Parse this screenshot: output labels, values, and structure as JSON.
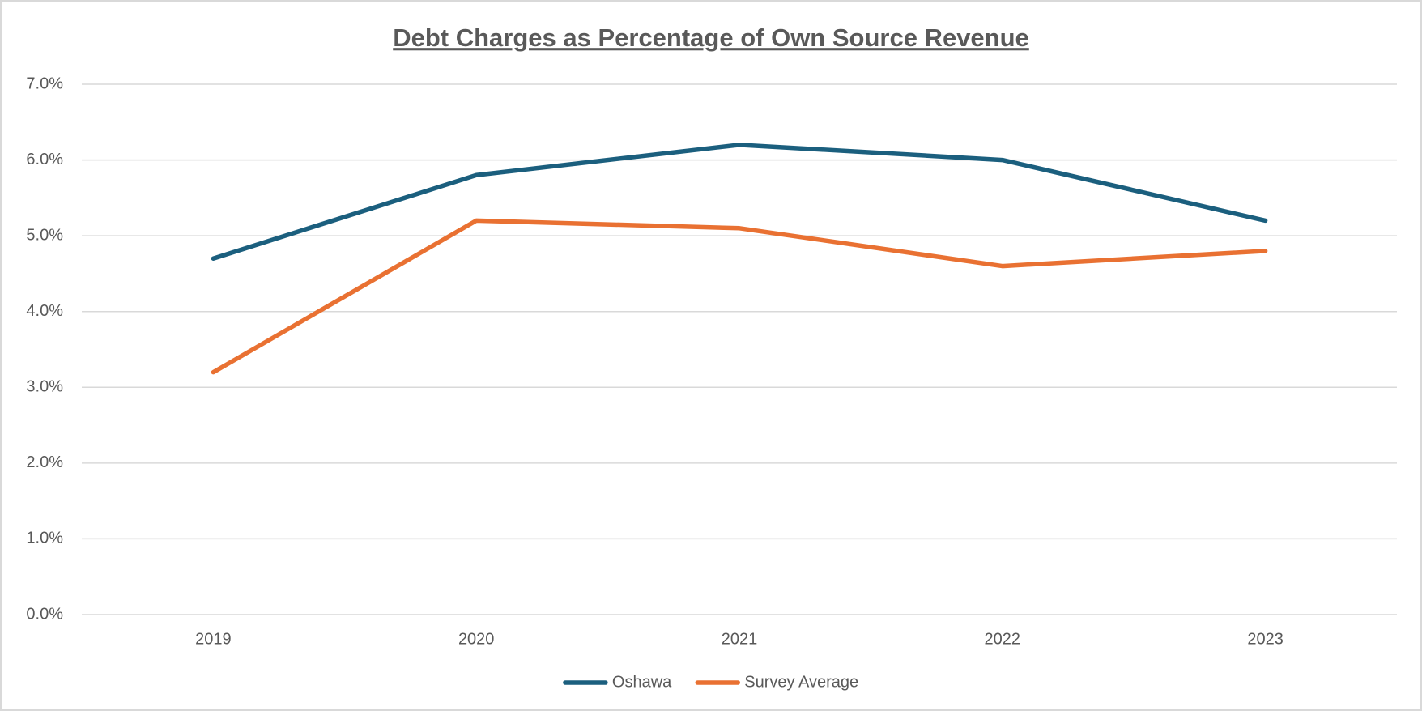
{
  "chart_data": {
    "type": "line",
    "title": "Debt Charges as Percentage of Own Source Revenue",
    "categories": [
      "2019",
      "2020",
      "2021",
      "2022",
      "2023"
    ],
    "series": [
      {
        "name": "Oshawa",
        "color": "#1b5f7e",
        "values": [
          4.7,
          5.8,
          6.2,
          6.0,
          5.2
        ]
      },
      {
        "name": "Survey Average",
        "color": "#e97132",
        "values": [
          3.2,
          5.2,
          5.1,
          4.6,
          4.8
        ]
      }
    ],
    "ylim": [
      0,
      7
    ],
    "yticks": [
      {
        "value": 0,
        "label": "0.0%"
      },
      {
        "value": 1,
        "label": "1.0%"
      },
      {
        "value": 2,
        "label": "2.0%"
      },
      {
        "value": 3,
        "label": "3.0%"
      },
      {
        "value": 4,
        "label": "4.0%"
      },
      {
        "value": 5,
        "label": "5.0%"
      },
      {
        "value": 6,
        "label": "6.0%"
      },
      {
        "value": 7,
        "label": "7.0%"
      }
    ],
    "grid": true,
    "legend": "bottom"
  }
}
